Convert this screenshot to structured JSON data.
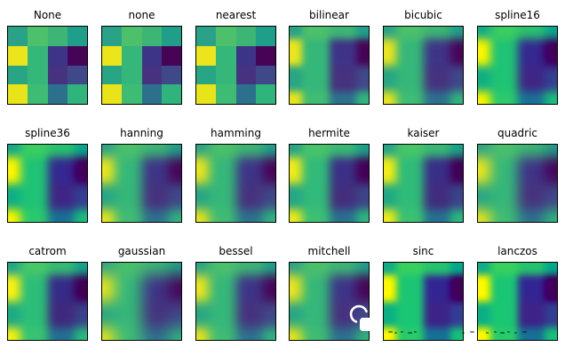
{
  "figure": {
    "background": "#ffffff",
    "layout": {
      "rows": 3,
      "cols": 6
    }
  },
  "chart_data": {
    "type": "heatmap",
    "title": "",
    "xlabel": "",
    "ylabel": "",
    "colormap": "viridis",
    "grid_shape": [
      4,
      4
    ],
    "values": [
      [
        0.58,
        0.7,
        0.66,
        0.55
      ],
      [
        0.97,
        0.63,
        0.18,
        0.01
      ],
      [
        0.57,
        0.64,
        0.14,
        0.26
      ],
      [
        0.97,
        0.66,
        0.36,
        0.62
      ]
    ],
    "cell_colors": [
      [
        "#2aa287",
        "#4cc06a",
        "#3db574",
        "#1f9e89"
      ],
      [
        "#ece51b",
        "#35b779",
        "#3e3487",
        "#470457"
      ],
      [
        "#27a584",
        "#35b779",
        "#46327e",
        "#3f4889"
      ],
      [
        "#e8e419",
        "#3fbc73",
        "#2d708e",
        "#2fb47c"
      ]
    ],
    "panels": [
      {
        "label": "None",
        "style": "pixelated"
      },
      {
        "label": "none",
        "style": "pixelated"
      },
      {
        "label": "nearest",
        "style": "pixelated"
      },
      {
        "label": "bilinear",
        "style": "smooth"
      },
      {
        "label": "bicubic",
        "style": "smooth"
      },
      {
        "label": "spline16",
        "style": "smooth"
      },
      {
        "label": "spline36",
        "style": "smooth"
      },
      {
        "label": "hanning",
        "style": "smooth"
      },
      {
        "label": "hamming",
        "style": "smooth"
      },
      {
        "label": "hermite",
        "style": "smooth"
      },
      {
        "label": "kaiser",
        "style": "smooth"
      },
      {
        "label": "quadric",
        "style": "smooth"
      },
      {
        "label": "catrom",
        "style": "smooth"
      },
      {
        "label": "gaussian",
        "style": "smooth"
      },
      {
        "label": "bessel",
        "style": "smooth"
      },
      {
        "label": "mitchell",
        "style": "smooth"
      },
      {
        "label": "sinc",
        "style": "smooth"
      },
      {
        "label": "lanczos",
        "style": "smooth"
      }
    ]
  }
}
